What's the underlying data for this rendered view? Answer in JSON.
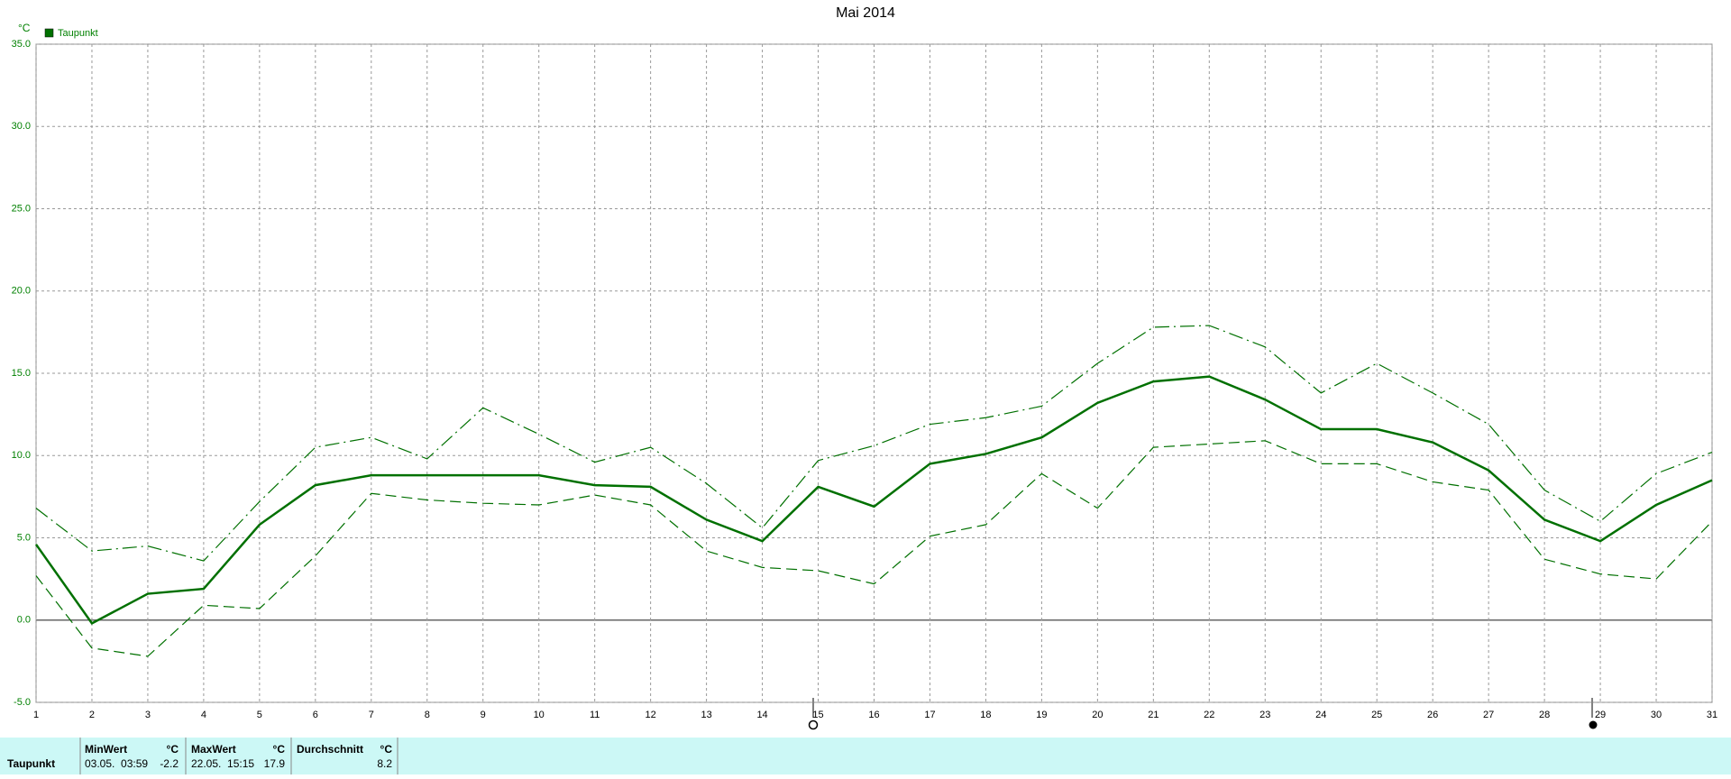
{
  "chart_data": {
    "type": "line",
    "title": "Mai 2014",
    "y_unit": "°C",
    "x": [
      1,
      2,
      3,
      4,
      5,
      6,
      7,
      8,
      9,
      10,
      11,
      12,
      13,
      14,
      15,
      16,
      17,
      18,
      19,
      20,
      21,
      22,
      23,
      24,
      25,
      26,
      27,
      28,
      29,
      30,
      31
    ],
    "xlim": [
      1,
      31
    ],
    "xticks": [
      1,
      2,
      3,
      4,
      5,
      6,
      7,
      8,
      9,
      10,
      11,
      12,
      13,
      14,
      15,
      16,
      17,
      18,
      19,
      20,
      21,
      22,
      23,
      24,
      25,
      26,
      27,
      28,
      29,
      30,
      31
    ],
    "ylim": [
      -5,
      35
    ],
    "yticks": [
      {
        "value": -5,
        "label": "-5.0"
      },
      {
        "value": 0,
        "label": "0.0"
      },
      {
        "value": 5,
        "label": "5.0"
      },
      {
        "value": 10,
        "label": "10.0"
      },
      {
        "value": 15,
        "label": "15.0"
      },
      {
        "value": 20,
        "label": "20.0"
      },
      {
        "value": 25,
        "label": "25.0"
      },
      {
        "value": 30,
        "label": "30.0"
      },
      {
        "value": 35,
        "label": "35.0"
      }
    ],
    "grid": true,
    "legend": "top-left",
    "series": [
      {
        "name": "Taupunkt",
        "color": "#007000",
        "linestyle": "solid",
        "values": [
          4.6,
          -0.2,
          1.6,
          1.9,
          5.8,
          8.2,
          8.8,
          8.8,
          8.8,
          8.8,
          8.2,
          8.1,
          6.1,
          4.8,
          8.1,
          6.9,
          9.5,
          10.1,
          11.1,
          13.2,
          14.5,
          14.8,
          13.4,
          11.6,
          11.6,
          10.8,
          9.1,
          6.1,
          4.8,
          7.0,
          8.5
        ]
      },
      {
        "color": "#007000",
        "linestyle": "dashdot",
        "values": [
          6.8,
          4.2,
          4.5,
          3.6,
          7.2,
          10.5,
          11.1,
          9.8,
          12.9,
          11.3,
          9.6,
          10.5,
          8.3,
          5.6,
          9.7,
          10.6,
          11.9,
          12.3,
          13.0,
          15.6,
          17.8,
          17.9,
          16.6,
          13.8,
          15.6,
          13.8,
          11.9,
          7.9,
          6.0,
          8.9,
          10.2
        ]
      },
      {
        "color": "#007000",
        "linestyle": "dashed",
        "values": [
          2.7,
          -1.7,
          -2.2,
          0.9,
          0.7,
          3.9,
          7.7,
          7.3,
          7.1,
          7.0,
          7.6,
          7.0,
          4.2,
          3.2,
          3.0,
          2.2,
          5.1,
          5.8,
          8.9,
          6.8,
          10.5,
          10.7,
          10.9,
          9.5,
          9.5,
          8.4,
          7.9,
          3.7,
          2.8,
          2.5,
          6.0
        ]
      }
    ]
  },
  "summary": {
    "row_label": "Taupunkt",
    "min": {
      "header": "MinWert",
      "unit": "°C",
      "time": "03.05.  03:59",
      "value": "-2.2"
    },
    "max": {
      "header": "MaxWert",
      "unit": "°C",
      "time": "22.05.  15:15",
      "value": "17.9"
    },
    "avg": {
      "header": "Durchschnitt",
      "unit": "°C",
      "value": "8.2"
    }
  }
}
